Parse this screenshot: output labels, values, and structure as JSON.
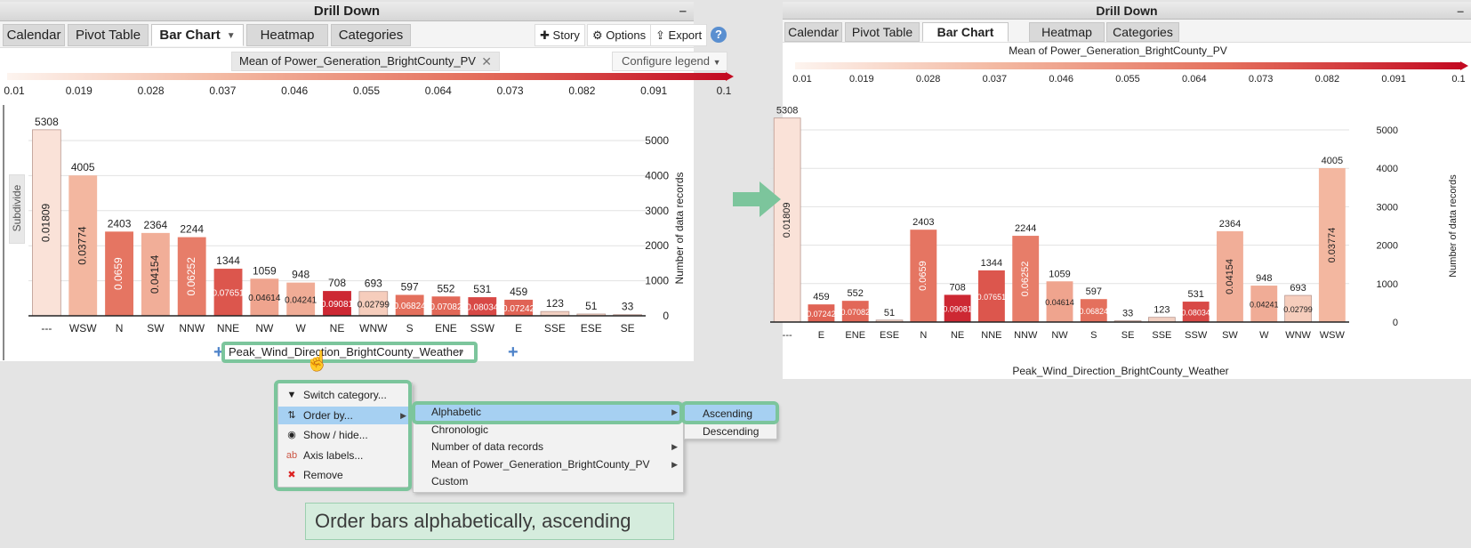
{
  "left": {
    "title": "Drill Down",
    "tabs": [
      "Calendar",
      "Pivot Table",
      "Bar Chart",
      "Heatmap",
      "Categories"
    ],
    "active_tab": "Bar Chart",
    "toolbar": {
      "story": "Story",
      "options": "Options",
      "export": "Export",
      "help": "?"
    },
    "measure_label": "Mean of Power_Generation_BrightCounty_PV",
    "configure_legend": "Configure legend",
    "subdivide": "Subdivide",
    "dimension": "Peak_Wind_Direction_BrightCounty_Weather"
  },
  "right": {
    "title": "Drill Down",
    "tabs": [
      "Calendar",
      "Pivot Table",
      "Bar Chart",
      "Heatmap",
      "Categories"
    ],
    "active_tab": "Bar Chart",
    "measure_label": "Mean of Power_Generation_BrightCounty_PV",
    "xlabel": "Peak_Wind_Direction_BrightCounty_Weather"
  },
  "legend_ticks": [
    "0.01",
    "0.019",
    "0.028",
    "0.037",
    "0.046",
    "0.055",
    "0.064",
    "0.073",
    "0.082",
    "0.091",
    "0.1"
  ],
  "menu_main": [
    {
      "label": "Switch category...",
      "icon": "triangle-down-icon",
      "highlighted": false,
      "submenu": false
    },
    {
      "label": "Order by...",
      "icon": "sort-az-icon",
      "highlighted": true,
      "submenu": true
    },
    {
      "label": "Show / hide...",
      "icon": "eye-icon",
      "highlighted": false,
      "submenu": false
    },
    {
      "label": "Axis labels...",
      "icon": "axis-labels-icon",
      "highlighted": false,
      "submenu": false
    },
    {
      "label": "Remove",
      "icon": "remove-x-icon",
      "highlighted": false,
      "submenu": false
    }
  ],
  "menu_order": [
    {
      "label": "Alphabetic",
      "highlighted": true,
      "submenu": true
    },
    {
      "label": "Chronologic",
      "highlighted": false,
      "submenu": false
    },
    {
      "label": "Number of data records",
      "highlighted": false,
      "submenu": true
    },
    {
      "label": "Mean of Power_Generation_BrightCounty_PV",
      "highlighted": false,
      "submenu": true
    },
    {
      "label": "Custom",
      "highlighted": false,
      "submenu": false
    }
  ],
  "menu_alpha": [
    {
      "label": "Ascending",
      "highlighted": true
    },
    {
      "label": "Descending",
      "highlighted": false
    }
  ],
  "caption": "Order bars alphabetically, ascending",
  "colors": {
    "legend_low": "#fdf4ef",
    "legend_high": "#c30b22",
    "highlight": "#7cc59c",
    "menu_highlight": "#a6d0f2"
  },
  "chart_data": [
    {
      "type": "bar",
      "title": "",
      "ylabel": "Number of data records",
      "xlabel": "Peak_Wind_Direction_BrightCounty_Weather",
      "ylim": [
        0,
        5000
      ],
      "yticks": [
        0,
        1000,
        2000,
        3000,
        4000,
        5000
      ],
      "color_scale": [
        0.01,
        0.1
      ],
      "categories": [
        "---",
        "WSW",
        "N",
        "SW",
        "NNW",
        "NNE",
        "NW",
        "W",
        "NE",
        "WNW",
        "S",
        "ENE",
        "SSW",
        "E",
        "SSE",
        "ESE",
        "SE"
      ],
      "values": [
        5308,
        4005,
        2403,
        2364,
        2244,
        1344,
        1059,
        948,
        708,
        693,
        597,
        552,
        531,
        459,
        123,
        51,
        33
      ],
      "means": [
        "0.01809",
        "0.03774",
        "0.0659",
        "0.04154",
        "0.06252",
        "0.07651",
        "0.04614",
        "0.04241",
        "0.09081",
        "0.02799",
        "0.06824",
        "0.07082",
        "0.08034",
        "0.07242",
        "",
        "",
        ""
      ]
    },
    {
      "type": "bar",
      "title": "Mean of Power_Generation_BrightCounty_PV",
      "ylabel": "Number of data records",
      "xlabel": "Peak_Wind_Direction_BrightCounty_Weather",
      "ylim": [
        0,
        5000
      ],
      "yticks": [
        0,
        1000,
        2000,
        3000,
        4000,
        5000
      ],
      "color_scale": [
        0.01,
        0.1
      ],
      "categories": [
        "---",
        "E",
        "ENE",
        "ESE",
        "N",
        "NE",
        "NNE",
        "NNW",
        "NW",
        "S",
        "SE",
        "SSE",
        "SSW",
        "SW",
        "W",
        "WNW",
        "WSW"
      ],
      "values": [
        5308,
        459,
        552,
        51,
        2403,
        708,
        1344,
        2244,
        1059,
        597,
        33,
        123,
        531,
        2364,
        948,
        693,
        4005
      ],
      "means": [
        "0.01809",
        "0.07242",
        "0.07082",
        "",
        "0.0659",
        "0.09081",
        "0.07651",
        "0.06252",
        "0.04614",
        "0.06824",
        "",
        "",
        "0.08034",
        "0.04154",
        "0.04241",
        "0.02799",
        "0.03774"
      ]
    }
  ]
}
